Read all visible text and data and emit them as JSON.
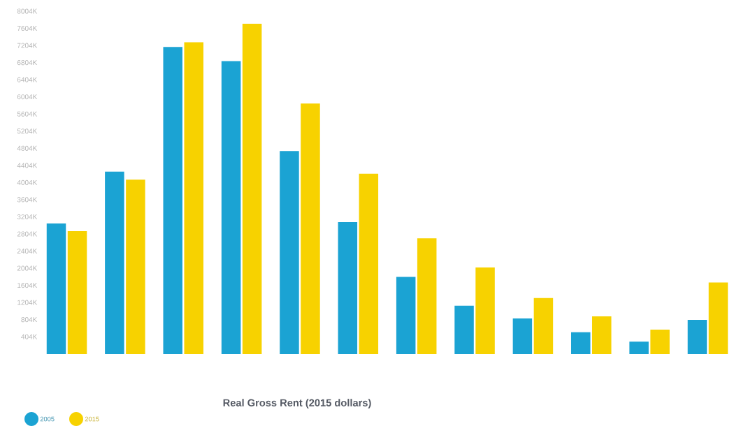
{
  "chart_data": {
    "type": "bar",
    "xlabel": "Real Gross Rent (2015 dollars)",
    "categories": [
      null,
      null,
      null,
      null,
      null,
      null,
      null,
      null,
      null,
      null,
      null,
      null
    ],
    "series": [
      {
        "name": "2005",
        "color": "#1ba3d3",
        "values": [
          3050000,
          4260000,
          7170000,
          6840000,
          4740000,
          3080000,
          1800000,
          1130000,
          830000,
          510000,
          290000,
          800000
        ]
      },
      {
        "name": "2015",
        "color": "#f7d200",
        "values": [
          2870000,
          4070000,
          7280000,
          7710000,
          5850000,
          4210000,
          2700000,
          2020000,
          1310000,
          880000,
          570000,
          1670000
        ]
      }
    ],
    "ylim": [
      0,
      8004000
    ],
    "yticks": [
      {
        "value": 404000,
        "label": "404K"
      },
      {
        "value": 804000,
        "label": "804K"
      },
      {
        "value": 1204000,
        "label": "1204K"
      },
      {
        "value": 1604000,
        "label": "1604K"
      },
      {
        "value": 2004000,
        "label": "2004K"
      },
      {
        "value": 2404000,
        "label": "2404K"
      },
      {
        "value": 2804000,
        "label": "2804K"
      },
      {
        "value": 3204000,
        "label": "3204K"
      },
      {
        "value": 3604000,
        "label": "3604K"
      },
      {
        "value": 4004000,
        "label": "4004K"
      },
      {
        "value": 4404000,
        "label": "4404K"
      },
      {
        "value": 4804000,
        "label": "4804K"
      },
      {
        "value": 5204000,
        "label": "5204K"
      },
      {
        "value": 5604000,
        "label": "5604K"
      },
      {
        "value": 6004000,
        "label": "6004K"
      },
      {
        "value": 6404000,
        "label": "6404K"
      },
      {
        "value": 6804000,
        "label": "6804K"
      },
      {
        "value": 7204000,
        "label": "7204K"
      },
      {
        "value": 7604000,
        "label": "7604K"
      },
      {
        "value": 8004000,
        "label": "8004K"
      }
    ],
    "legend": "bottom left"
  }
}
